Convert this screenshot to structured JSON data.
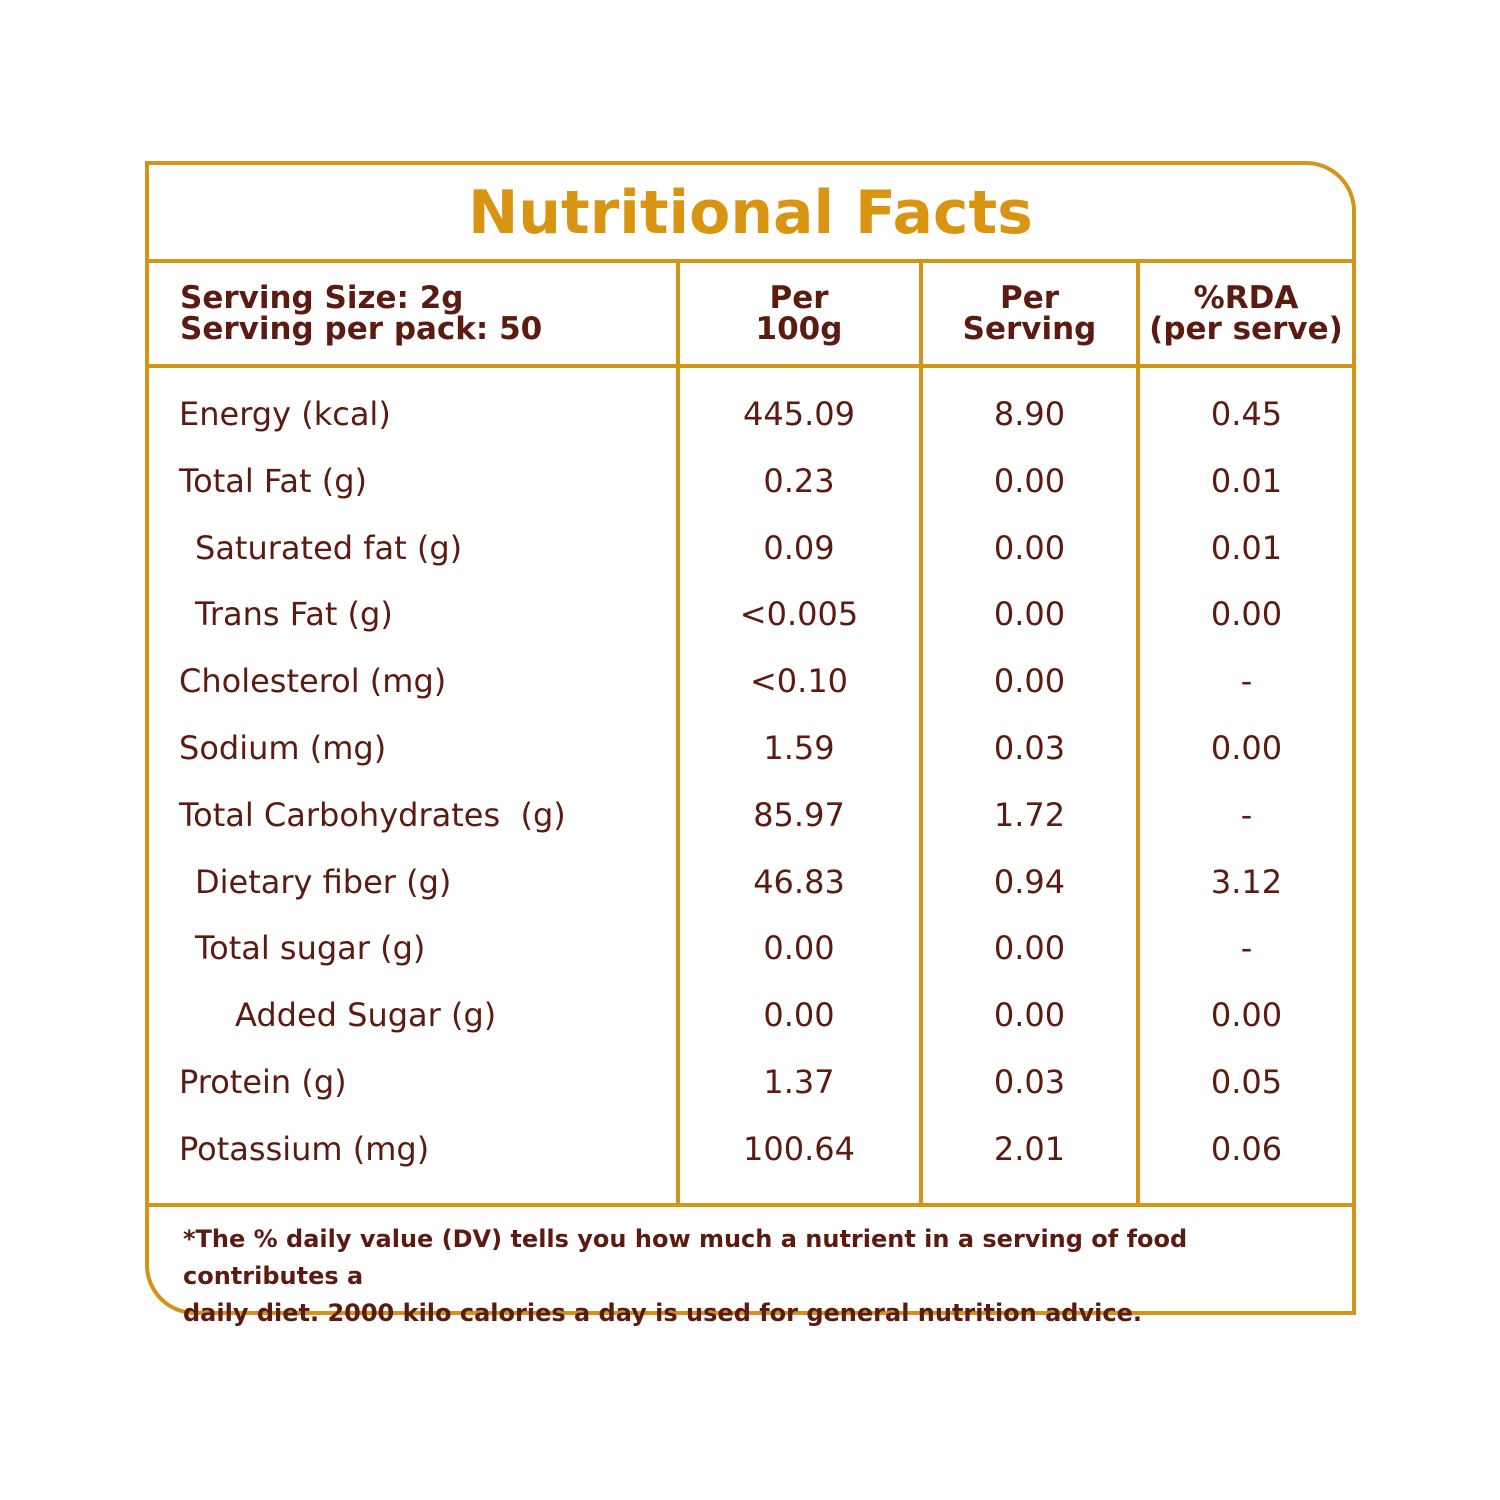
{
  "title": "Nutritional Facts",
  "header": {
    "serving_size": "Serving Size: 2g",
    "servings_per_pack": "Serving per pack: 50",
    "col_per100g_line1": "Per",
    "col_per100g_line2": "100g",
    "col_perserving_line1": "Per",
    "col_perserving_line2": "Serving",
    "col_rda_line1": "%RDA",
    "col_rda_line2": "(per serve)"
  },
  "rows": [
    {
      "label": "Energy (kcal)",
      "indent": 0,
      "per100g": "445.09",
      "per_serving": "8.90",
      "rda": "0.45"
    },
    {
      "label": "Total Fat (g)",
      "indent": 0,
      "per100g": "0.23",
      "per_serving": "0.00",
      "rda": "0.01"
    },
    {
      "label": "Saturated fat (g)",
      "indent": 1,
      "per100g": "0.09",
      "per_serving": "0.00",
      "rda": "0.01"
    },
    {
      "label": "Trans Fat (g)",
      "indent": 1,
      "per100g": "<0.005",
      "per_serving": "0.00",
      "rda": "0.00"
    },
    {
      "label": "Cholesterol (mg)",
      "indent": 0,
      "per100g": "<0.10",
      "per_serving": "0.00",
      "rda": "-"
    },
    {
      "label": "Sodium (mg)",
      "indent": 0,
      "per100g": "1.59",
      "per_serving": "0.03",
      "rda": "0.00"
    },
    {
      "label": "Total Carbohydrates  (g)",
      "indent": 0,
      "per100g": "85.97",
      "per_serving": "1.72",
      "rda": "-"
    },
    {
      "label": "Dietary fiber (g)",
      "indent": 1,
      "per100g": "46.83",
      "per_serving": "0.94",
      "rda": "3.12"
    },
    {
      "label": "Total sugar (g)",
      "indent": 1,
      "per100g": "0.00",
      "per_serving": "0.00",
      "rda": "-"
    },
    {
      "label": "Added Sugar (g)",
      "indent": 2,
      "per100g": "0.00",
      "per_serving": "0.00",
      "rda": "0.00"
    },
    {
      "label": "Protein (g)",
      "indent": 0,
      "per100g": "1.37",
      "per_serving": "0.03",
      "rda": "0.05"
    },
    {
      "label": "Potassium (mg)",
      "indent": 0,
      "per100g": "100.64",
      "per_serving": "2.01",
      "rda": "0.06"
    }
  ],
  "footnote_line1": "*The % daily value (DV) tells you how much a nutrient in a serving of food contributes a",
  "footnote_line2": "daily diet. 2000 kilo calories a day is used for general nutrition advice.",
  "colors": {
    "accent": "#d49417",
    "title": "#d99511",
    "text": "#5b1b10"
  }
}
